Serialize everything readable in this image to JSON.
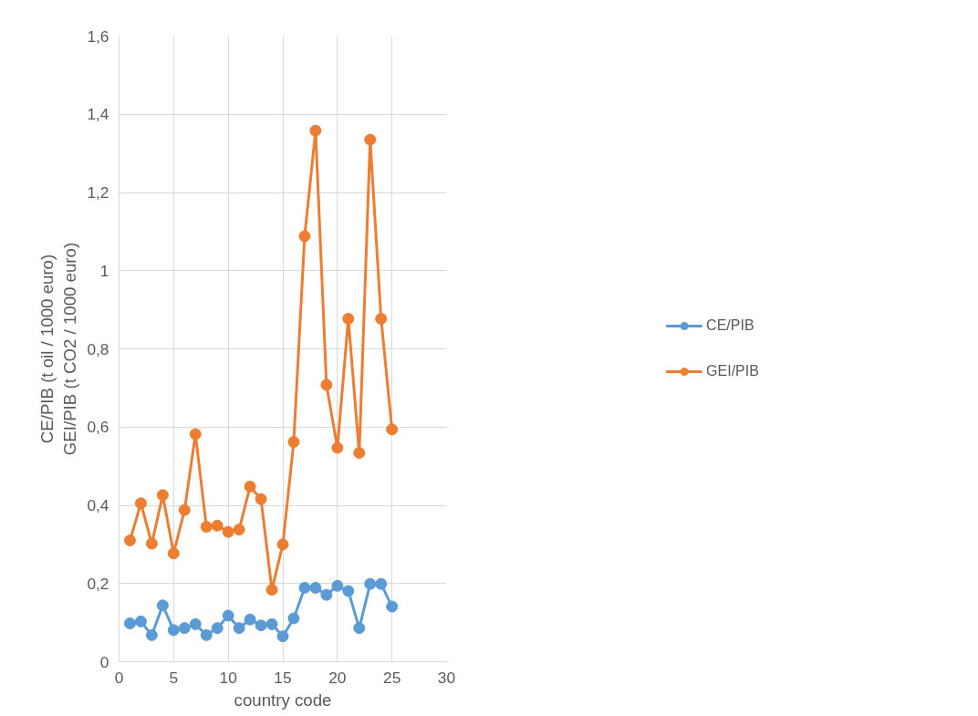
{
  "chart_data": {
    "type": "line",
    "xlabel": "country code",
    "ylabel": "CE/PIB (t oil / 1000 euro)\nGEI/PIB (t CO2 / 1000 euro)",
    "x": [
      1,
      2,
      3,
      4,
      5,
      6,
      7,
      8,
      9,
      10,
      11,
      12,
      13,
      14,
      15,
      16,
      17,
      18,
      19,
      20,
      21,
      22,
      23,
      24,
      25
    ],
    "series": [
      {
        "name": "CE/PIB",
        "color": "#5b9bd5",
        "values": [
          0.098,
          0.103,
          0.068,
          0.144,
          0.081,
          0.086,
          0.096,
          0.068,
          0.086,
          0.118,
          0.086,
          0.108,
          0.093,
          0.096,
          0.065,
          0.111,
          0.189,
          0.189,
          0.171,
          0.194,
          0.181,
          0.086,
          0.199,
          0.199,
          0.141
        ]
      },
      {
        "name": "GEI/PIB",
        "color": "#ed7d31",
        "values": [
          0.31,
          0.405,
          0.302,
          0.426,
          0.277,
          0.388,
          0.582,
          0.345,
          0.348,
          0.332,
          0.338,
          0.448,
          0.416,
          0.184,
          0.3,
          0.562,
          1.088,
          1.358,
          0.708,
          0.547,
          0.877,
          0.534,
          1.335,
          0.877,
          0.594
        ]
      }
    ],
    "xlim": [
      0,
      30
    ],
    "xticks": [
      0,
      5,
      10,
      15,
      20,
      25,
      30
    ],
    "ylim": [
      0,
      1.6
    ],
    "yticks": [
      0,
      {
        "value": 0.2,
        "label": "0,2"
      },
      {
        "value": 0.4,
        "label": "0,4"
      },
      {
        "value": 0.6,
        "label": "0,6"
      },
      {
        "value": 0.8,
        "label": "0,8"
      },
      1,
      {
        "value": 1.2,
        "label": "1,2"
      },
      {
        "value": 1.4,
        "label": "1,4"
      },
      {
        "value": 1.6,
        "label": "1,6"
      }
    ],
    "grid": true,
    "legend": "right",
    "marker": "circle",
    "line_style": "solid"
  }
}
